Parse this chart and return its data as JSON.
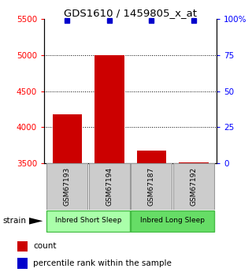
{
  "title": "GDS1610 / 1459805_x_at",
  "samples": [
    "GSM67193",
    "GSM67194",
    "GSM67187",
    "GSM67192"
  ],
  "counts": [
    4180,
    5000,
    3680,
    3510
  ],
  "percentiles": [
    99,
    99,
    99,
    99
  ],
  "ylim_left": [
    3500,
    5500
  ],
  "ylim_right": [
    0,
    100
  ],
  "yticks_left": [
    3500,
    4000,
    4500,
    5000,
    5500
  ],
  "yticks_right": [
    0,
    25,
    50,
    75,
    100
  ],
  "ytick_labels_right": [
    "0",
    "25",
    "50",
    "75",
    "100%"
  ],
  "groups": [
    {
      "label": "Inbred Short Sleep",
      "samples": [
        0,
        1
      ],
      "color": "#aaffaa"
    },
    {
      "label": "Inbred Long Sleep",
      "samples": [
        2,
        3
      ],
      "color": "#66dd66"
    }
  ],
  "bar_color": "#cc0000",
  "dot_color": "#0000cc",
  "bar_width": 0.7,
  "background_color": "#ffffff",
  "label_box_color": "#cccccc",
  "strain_label": "strain",
  "legend_count_label": "count",
  "legend_pct_label": "percentile rank within the sample"
}
